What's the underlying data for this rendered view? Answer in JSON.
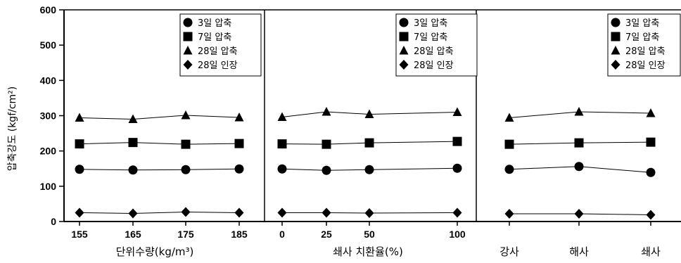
{
  "chart_data": {
    "type": "line",
    "ylabel": "압축강도 (kgf/cm²)",
    "ylim": [
      0,
      600
    ],
    "yticks": [
      0,
      100,
      200,
      300,
      400,
      500,
      600
    ],
    "legend_position": "top-right",
    "markers": {
      "3일 압축": "circle",
      "7일 압축": "square",
      "28일 압축": "triangle",
      "28일 인장": "diamond"
    },
    "panels": [
      {
        "xlabel": "단위수량(kg/m³)",
        "x": [
          155,
          165,
          175,
          185
        ],
        "xticks": [
          "155",
          "165",
          "175",
          "185"
        ],
        "series": [
          {
            "name": "3일 압축",
            "values": [
              148,
              146,
              147,
              149
            ]
          },
          {
            "name": "7일 압축",
            "values": [
              220,
              224,
              219,
              221
            ]
          },
          {
            "name": "28일 압축",
            "values": [
              294,
              290,
              301,
              295
            ]
          },
          {
            "name": "28일 인장",
            "values": [
              25,
              23,
              27,
              25
            ]
          }
        ]
      },
      {
        "xlabel": "쇄사 치환율(%)",
        "x": [
          0,
          25,
          50,
          100
        ],
        "xticks": [
          "0",
          "25",
          "50",
          "100"
        ],
        "series": [
          {
            "name": "3일 압축",
            "values": [
              149,
              145,
              147,
              151
            ]
          },
          {
            "name": "7일 압축",
            "values": [
              220,
              219,
              223,
              227
            ]
          },
          {
            "name": "28일 압축",
            "values": [
              296,
              311,
              304,
              310
            ]
          },
          {
            "name": "28일 인장",
            "values": [
              25,
              25,
              24,
              25
            ]
          }
        ]
      },
      {
        "xlabel": "",
        "x": [
          "강사",
          "해사",
          "쇄사"
        ],
        "xticks": [
          "강사",
          "해사",
          "쇄사"
        ],
        "series": [
          {
            "name": "3일 압축",
            "values": [
              148,
              156,
              139
            ]
          },
          {
            "name": "7일 압축",
            "values": [
              219,
              223,
              225
            ]
          },
          {
            "name": "28일 압축",
            "values": [
              294,
              311,
              307
            ]
          },
          {
            "name": "28일 인장",
            "values": [
              22,
              22,
              19
            ]
          }
        ]
      }
    ]
  }
}
